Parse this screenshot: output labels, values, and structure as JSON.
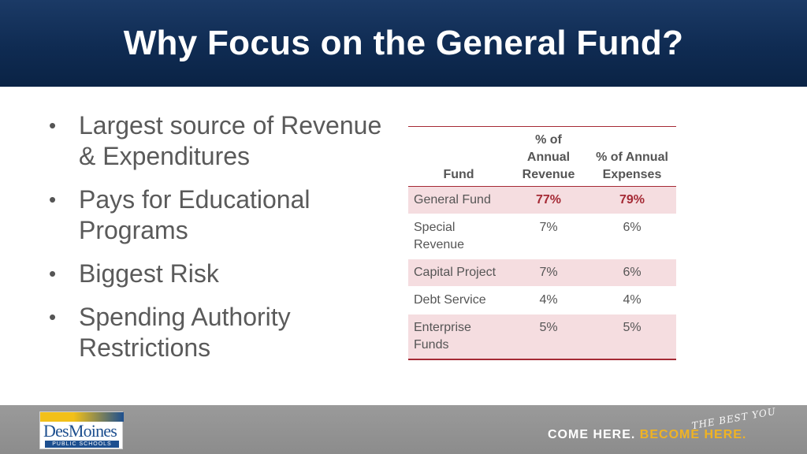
{
  "slide": {
    "title": "Why Focus on the General Fund?"
  },
  "bullets": [
    "Largest source of Revenue & Expenditures",
    "Pays for Educational Programs",
    "Biggest Risk",
    "Spending Authority Restrictions"
  ],
  "table": {
    "headers": [
      "Fund",
      "% of Annual Revenue",
      "% of Annual Expenses"
    ],
    "rows": [
      [
        "General Fund",
        "77%",
        "79%"
      ],
      [
        "Special Revenue",
        "7%",
        "6%"
      ],
      [
        "Capital Project",
        "7%",
        "6%"
      ],
      [
        "Debt Service",
        "4%",
        "4%"
      ],
      [
        "Enterprise Funds",
        "5%",
        "5%"
      ]
    ]
  },
  "footer": {
    "logo_name": "DesMoines",
    "logo_sub": "PUBLIC SCHOOLS",
    "script_text": "THE BEST YOU",
    "tagline_white": "COME HERE.",
    "tagline_gold": "BECOME HERE."
  },
  "colors": {
    "header_bg": "#0f2b52",
    "accent": "#a52a35",
    "row_shade": "#f5dde0",
    "footer_bg": "#8c8c8c",
    "gold": "#f0b323"
  }
}
